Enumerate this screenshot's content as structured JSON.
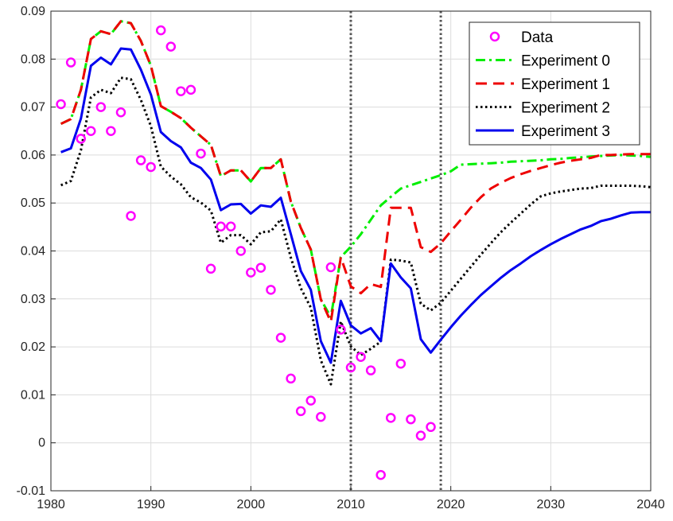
{
  "chart_data": {
    "type": "line",
    "title": "",
    "xlabel": "",
    "ylabel": "",
    "xlim": [
      1980,
      2040
    ],
    "ylim": [
      -0.01,
      0.09
    ],
    "xticks": [
      1980,
      1990,
      2000,
      2010,
      2020,
      2030,
      2040
    ],
    "xtick_labels": [
      "1980",
      "1990",
      "2000",
      "2010",
      "2020",
      "2030",
      "2040"
    ],
    "yticks": [
      -0.01,
      0,
      0.01,
      0.02,
      0.03,
      0.04,
      0.05,
      0.06,
      0.07,
      0.08,
      0.09
    ],
    "ytick_labels": [
      "-0.01",
      "0",
      "0.01",
      "0.02",
      "0.03",
      "0.04",
      "0.05",
      "0.06",
      "0.07",
      "0.08",
      "0.09"
    ],
    "grid": true,
    "legend_position": "top-right",
    "vertical_lines": [
      2010,
      2019
    ],
    "data_points": {
      "name": "Data",
      "color": "#ff00ff",
      "marker": "circle",
      "x": [
        1981,
        1982,
        1983,
        1984,
        1985,
        1986,
        1987,
        1988,
        1989,
        1990,
        1991,
        1992,
        1993,
        1994,
        1995,
        1996,
        1997,
        1998,
        1999,
        2000,
        2001,
        2002,
        2003,
        2004,
        2005,
        2006,
        2007,
        2008,
        2009,
        2010,
        2011,
        2012,
        2013,
        2014,
        2015,
        2016,
        2017,
        2018
      ],
      "y": [
        0.0706,
        0.0793,
        0.0634,
        0.065,
        0.07,
        0.065,
        0.0689,
        0.0473,
        0.0589,
        0.0575,
        0.086,
        0.0826,
        0.0733,
        0.0736,
        0.0603,
        0.0363,
        0.0451,
        0.0451,
        0.04,
        0.0355,
        0.0365,
        0.0319,
        0.0219,
        0.0134,
        0.0066,
        0.0088,
        0.0054,
        0.0366,
        0.0236,
        0.0157,
        0.0179,
        0.0151,
        -0.0067,
        0.0052,
        0.0165,
        0.0049,
        0.0015,
        0.0033
      ]
    },
    "series": [
      {
        "name": "Experiment 0",
        "color": "#00ee00",
        "style": "dashdot",
        "x": [
          1981,
          1982,
          1983,
          1984,
          1985,
          1986,
          1987,
          1988,
          1989,
          1990,
          1991,
          1992,
          1993,
          1994,
          1995,
          1996,
          1997,
          1998,
          1999,
          2000,
          2001,
          2002,
          2003,
          2004,
          2005,
          2006,
          2007,
          2008,
          2009,
          2010,
          2011,
          2012,
          2013,
          2014,
          2015,
          2016,
          2017,
          2018,
          2019,
          2020,
          2021,
          2022,
          2023,
          2024,
          2025,
          2026,
          2027,
          2028,
          2029,
          2030,
          2031,
          2032,
          2033,
          2034,
          2035,
          2036,
          2037,
          2038,
          2039,
          2040
        ],
        "y": [
          0.0665,
          0.0675,
          0.0736,
          0.0842,
          0.0858,
          0.0852,
          0.0879,
          0.0875,
          0.0838,
          0.0786,
          0.0702,
          0.069,
          0.0677,
          0.0657,
          0.0639,
          0.0621,
          0.0556,
          0.0568,
          0.0568,
          0.0545,
          0.0573,
          0.0573,
          0.0591,
          0.0503,
          0.0448,
          0.0403,
          0.0299,
          0.0262,
          0.0387,
          0.0409,
          0.0435,
          0.0465,
          0.0495,
          0.0513,
          0.053,
          0.0537,
          0.0544,
          0.0551,
          0.0558,
          0.0566,
          0.058,
          0.0581,
          0.0582,
          0.0583,
          0.0584,
          0.0586,
          0.0587,
          0.0588,
          0.0589,
          0.0591,
          0.0592,
          0.0594,
          0.0595,
          0.0597,
          0.0598,
          0.0599,
          0.06,
          0.0599,
          0.0598,
          0.0596
        ]
      },
      {
        "name": "Experiment 1",
        "color": "#ee0000",
        "style": "dashed",
        "x": [
          1981,
          1982,
          1983,
          1984,
          1985,
          1986,
          1987,
          1988,
          1989,
          1990,
          1991,
          1992,
          1993,
          1994,
          1995,
          1996,
          1997,
          1998,
          1999,
          2000,
          2001,
          2002,
          2003,
          2004,
          2005,
          2006,
          2007,
          2008,
          2009,
          2010,
          2011,
          2012,
          2013,
          2014,
          2015,
          2016,
          2017,
          2018,
          2019,
          2020,
          2021,
          2022,
          2023,
          2024,
          2025,
          2026,
          2027,
          2028,
          2029,
          2030,
          2031,
          2032,
          2033,
          2034,
          2035,
          2036,
          2037,
          2038,
          2039,
          2040
        ],
        "y": [
          0.0665,
          0.0675,
          0.0736,
          0.0842,
          0.0858,
          0.0852,
          0.0879,
          0.0875,
          0.0838,
          0.0786,
          0.0702,
          0.069,
          0.0677,
          0.0657,
          0.0639,
          0.0621,
          0.0556,
          0.0568,
          0.0568,
          0.0545,
          0.0573,
          0.0573,
          0.0591,
          0.0503,
          0.0448,
          0.0403,
          0.0299,
          0.0252,
          0.0387,
          0.0326,
          0.0312,
          0.0331,
          0.0325,
          0.049,
          0.049,
          0.049,
          0.0408,
          0.0398,
          0.0416,
          0.0441,
          0.0465,
          0.049,
          0.0512,
          0.053,
          0.0542,
          0.0552,
          0.056,
          0.0567,
          0.0573,
          0.0579,
          0.0584,
          0.0588,
          0.0591,
          0.0594,
          0.06,
          0.06,
          0.0601,
          0.0602,
          0.0602,
          0.0602
        ]
      },
      {
        "name": "Experiment 2",
        "color": "#000000",
        "style": "dotted",
        "x": [
          1981,
          1982,
          1983,
          1984,
          1985,
          1986,
          1987,
          1988,
          1989,
          1990,
          1991,
          1992,
          1993,
          1994,
          1995,
          1996,
          1997,
          1998,
          1999,
          2000,
          2001,
          2002,
          2003,
          2004,
          2005,
          2006,
          2007,
          2008,
          2009,
          2010,
          2011,
          2012,
          2013,
          2014,
          2015,
          2016,
          2017,
          2018,
          2019,
          2020,
          2021,
          2022,
          2023,
          2024,
          2025,
          2026,
          2027,
          2028,
          2029,
          2030,
          2031,
          2032,
          2033,
          2034,
          2035,
          2036,
          2037,
          2038,
          2039,
          2040
        ],
        "y": [
          0.0537,
          0.0546,
          0.061,
          0.072,
          0.0736,
          0.0729,
          0.0761,
          0.0758,
          0.0715,
          0.066,
          0.0576,
          0.0555,
          0.0539,
          0.0512,
          0.0501,
          0.0484,
          0.0417,
          0.0433,
          0.0433,
          0.0414,
          0.0439,
          0.0441,
          0.0466,
          0.0386,
          0.0322,
          0.0282,
          0.0172,
          0.0122,
          0.0253,
          0.0201,
          0.0183,
          0.0196,
          0.0211,
          0.0382,
          0.038,
          0.0376,
          0.029,
          0.0276,
          0.0292,
          0.0317,
          0.0342,
          0.0367,
          0.0392,
          0.0416,
          0.0439,
          0.0459,
          0.0478,
          0.0497,
          0.0514,
          0.052,
          0.0524,
          0.0527,
          0.053,
          0.0531,
          0.0536,
          0.0536,
          0.0536,
          0.0536,
          0.0535,
          0.0533
        ]
      },
      {
        "name": "Experiment 3",
        "color": "#0000ee",
        "style": "solid",
        "x": [
          1981,
          1982,
          1983,
          1984,
          1985,
          1986,
          1987,
          1988,
          1989,
          1990,
          1991,
          1992,
          1993,
          1994,
          1995,
          1996,
          1997,
          1998,
          1999,
          2000,
          2001,
          2002,
          2003,
          2004,
          2005,
          2006,
          2007,
          2008,
          2009,
          2010,
          2011,
          2012,
          2013,
          2014,
          2015,
          2016,
          2017,
          2018,
          2019,
          2020,
          2021,
          2022,
          2023,
          2024,
          2025,
          2026,
          2027,
          2028,
          2029,
          2030,
          2031,
          2032,
          2033,
          2034,
          2035,
          2036,
          2037,
          2038,
          2039,
          2040
        ],
        "y": [
          0.0606,
          0.0614,
          0.0676,
          0.0786,
          0.0803,
          0.0789,
          0.0822,
          0.082,
          0.0778,
          0.0726,
          0.0648,
          0.0629,
          0.0616,
          0.0584,
          0.0573,
          0.0549,
          0.0485,
          0.0497,
          0.0498,
          0.0478,
          0.0495,
          0.0492,
          0.0511,
          0.0435,
          0.0358,
          0.0319,
          0.0212,
          0.0167,
          0.0296,
          0.0245,
          0.0228,
          0.0239,
          0.0212,
          0.0374,
          0.0345,
          0.0322,
          0.0216,
          0.0188,
          0.0215,
          0.0241,
          0.0265,
          0.0287,
          0.0308,
          0.0326,
          0.0344,
          0.036,
          0.0374,
          0.0389,
          0.0402,
          0.0414,
          0.0425,
          0.0435,
          0.0445,
          0.0452,
          0.0462,
          0.0467,
          0.0474,
          0.048,
          0.0481,
          0.0481
        ]
      }
    ]
  }
}
